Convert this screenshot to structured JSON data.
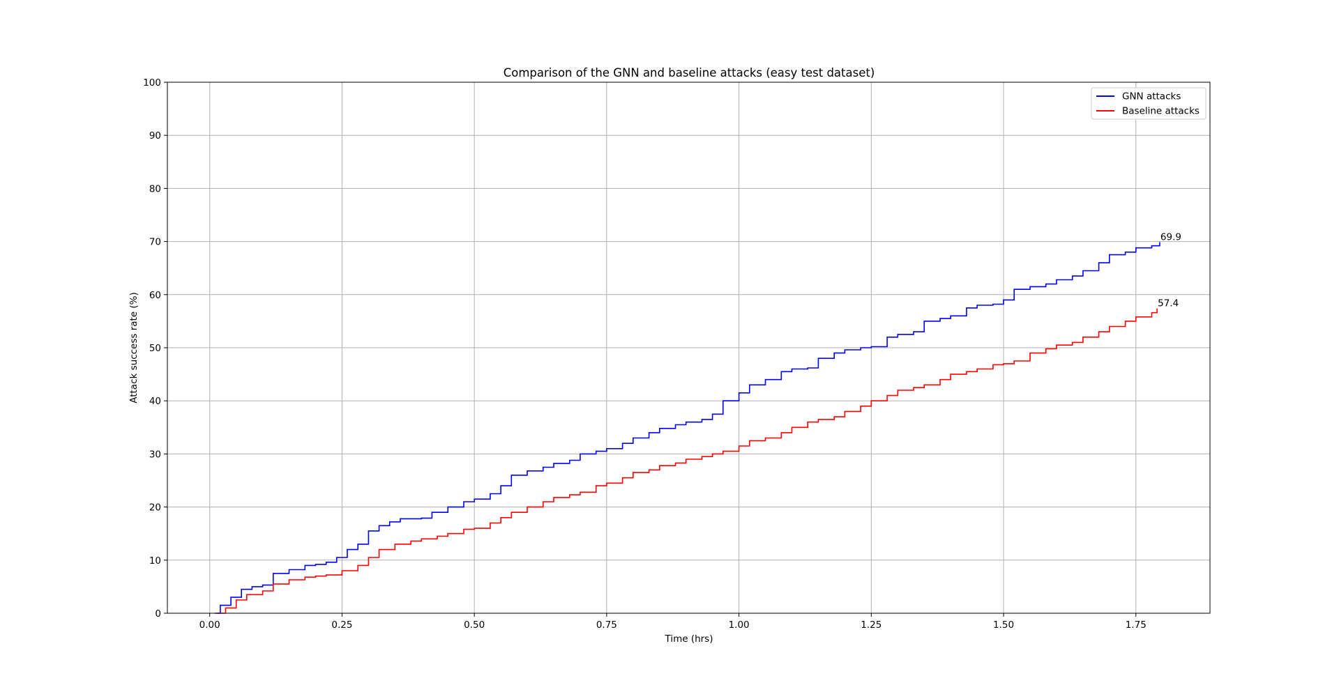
{
  "chart_data": {
    "type": "line",
    "title": "Comparison of the GNN and baseline attacks (easy test dataset)",
    "xlabel": "Time (hrs)",
    "ylabel": "Attack success rate (%)",
    "xlim": [
      -0.08,
      1.89
    ],
    "ylim": [
      0,
      100
    ],
    "xticks": [
      0.0,
      0.25,
      0.5,
      0.75,
      1.0,
      1.25,
      1.5,
      1.75
    ],
    "xtick_labels": [
      "0.00",
      "0.25",
      "0.50",
      "0.75",
      "1.00",
      "1.25",
      "1.50",
      "1.75"
    ],
    "yticks": [
      0,
      10,
      20,
      30,
      40,
      50,
      60,
      70,
      80,
      90,
      100
    ],
    "ytick_labels": [
      "0",
      "10",
      "20",
      "30",
      "40",
      "50",
      "60",
      "70",
      "80",
      "90",
      "100"
    ],
    "grid": true,
    "legend_position": "top-right",
    "series": [
      {
        "name": "GNN attacks",
        "color": "#0000ff",
        "end_label": "69.9",
        "x": [
          0.01,
          0.02,
          0.04,
          0.06,
          0.08,
          0.1,
          0.12,
          0.15,
          0.18,
          0.2,
          0.22,
          0.24,
          0.26,
          0.28,
          0.3,
          0.32,
          0.34,
          0.36,
          0.4,
          0.42,
          0.45,
          0.48,
          0.5,
          0.53,
          0.55,
          0.57,
          0.6,
          0.63,
          0.65,
          0.68,
          0.7,
          0.73,
          0.75,
          0.78,
          0.8,
          0.83,
          0.85,
          0.88,
          0.9,
          0.93,
          0.95,
          0.97,
          1.0,
          1.02,
          1.05,
          1.08,
          1.1,
          1.13,
          1.15,
          1.18,
          1.2,
          1.23,
          1.25,
          1.28,
          1.3,
          1.33,
          1.35,
          1.38,
          1.4,
          1.43,
          1.45,
          1.48,
          1.5,
          1.52,
          1.55,
          1.58,
          1.6,
          1.63,
          1.65,
          1.68,
          1.7,
          1.73,
          1.75,
          1.78,
          1.795
        ],
        "values": [
          0,
          1.5,
          3.0,
          4.5,
          5.0,
          5.3,
          7.5,
          8.2,
          9.0,
          9.2,
          9.6,
          10.5,
          12.0,
          13.0,
          15.5,
          16.5,
          17.2,
          17.8,
          17.9,
          19.0,
          20.0,
          21.0,
          21.5,
          22.5,
          24.0,
          26.0,
          26.8,
          27.5,
          28.2,
          28.8,
          30.0,
          30.5,
          31.0,
          32.0,
          33.0,
          34.0,
          34.8,
          35.5,
          36.0,
          36.5,
          37.5,
          40.0,
          41.5,
          43.0,
          44.0,
          45.5,
          46.0,
          46.2,
          48.0,
          49.0,
          49.6,
          50.0,
          50.2,
          52.0,
          52.5,
          53.0,
          55.0,
          55.5,
          56.0,
          57.5,
          58.0,
          58.2,
          59.0,
          61.0,
          61.5,
          62.0,
          62.8,
          63.5,
          64.5,
          66.0,
          67.5,
          68.0,
          68.8,
          69.2,
          69.9
        ]
      },
      {
        "name": "Baseline attacks",
        "color": "#ff0000",
        "end_label": "57.4",
        "x": [
          0.015,
          0.03,
          0.05,
          0.07,
          0.1,
          0.12,
          0.15,
          0.18,
          0.2,
          0.22,
          0.25,
          0.28,
          0.3,
          0.32,
          0.35,
          0.38,
          0.4,
          0.43,
          0.45,
          0.48,
          0.5,
          0.53,
          0.55,
          0.57,
          0.6,
          0.63,
          0.65,
          0.68,
          0.7,
          0.73,
          0.75,
          0.78,
          0.8,
          0.83,
          0.85,
          0.88,
          0.9,
          0.93,
          0.95,
          0.97,
          1.0,
          1.02,
          1.05,
          1.08,
          1.1,
          1.13,
          1.15,
          1.18,
          1.2,
          1.23,
          1.25,
          1.28,
          1.3,
          1.33,
          1.35,
          1.38,
          1.4,
          1.43,
          1.45,
          1.48,
          1.5,
          1.52,
          1.55,
          1.58,
          1.6,
          1.63,
          1.65,
          1.68,
          1.7,
          1.73,
          1.75,
          1.78,
          1.79
        ],
        "values": [
          0,
          1.0,
          2.5,
          3.5,
          4.2,
          5.5,
          6.3,
          6.8,
          7.0,
          7.2,
          8.0,
          9.0,
          10.5,
          12.0,
          13.0,
          13.6,
          14.0,
          14.5,
          15.0,
          15.8,
          16.0,
          17.0,
          18.0,
          19.0,
          20.0,
          21.0,
          21.8,
          22.3,
          22.8,
          24.0,
          24.5,
          25.5,
          26.5,
          27.0,
          27.8,
          28.3,
          29.0,
          29.5,
          30.0,
          30.5,
          31.5,
          32.5,
          33.0,
          34.0,
          35.0,
          36.0,
          36.5,
          37.0,
          38.0,
          39.0,
          40.0,
          41.0,
          42.0,
          42.5,
          43.0,
          44.0,
          45.0,
          45.5,
          46.0,
          46.8,
          47.0,
          47.5,
          49.0,
          49.8,
          50.5,
          51.0,
          52.0,
          53.0,
          54.0,
          55.0,
          55.8,
          56.6,
          57.4
        ]
      }
    ]
  }
}
